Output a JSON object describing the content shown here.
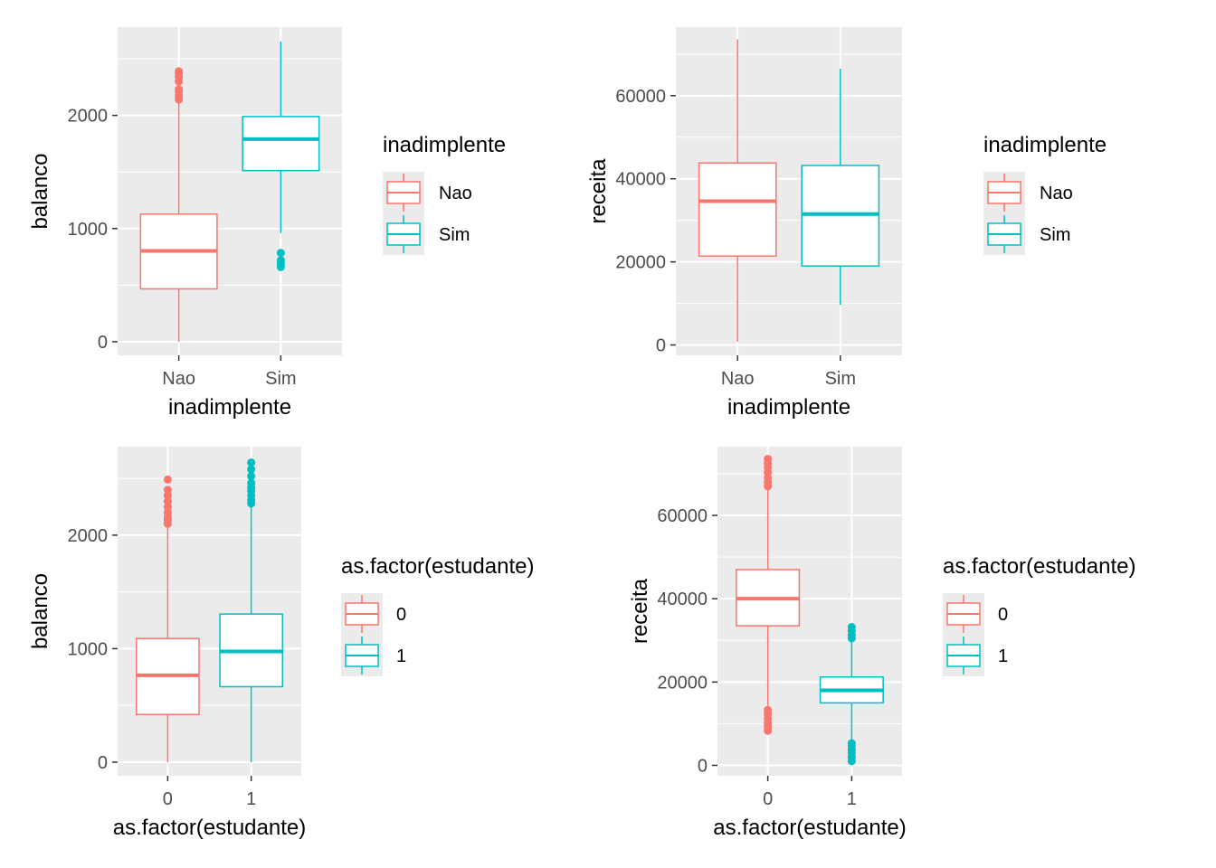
{
  "colors": {
    "level_1": "#F8766D",
    "level_2": "#00BFC4",
    "panel_bg": "#EBEBEB",
    "grid": "#FFFFFF"
  },
  "chart_data": [
    {
      "type": "boxplot",
      "xlabel": "inadimplente",
      "ylabel": "balanco",
      "categories": [
        "Nao",
        "Sim"
      ],
      "ylim": [
        -120,
        2780
      ],
      "yticks": [
        0,
        1000,
        2000
      ],
      "ytick_labels": [
        "0",
        "1000",
        "2000"
      ],
      "legend": {
        "title": "inadimplente",
        "entries": [
          "Nao",
          "Sim"
        ],
        "placement": "right"
      },
      "boxes": [
        {
          "category": "Nao",
          "min": 0,
          "q1": 467,
          "median": 803,
          "q3": 1128,
          "max": 2120,
          "outliers": [
            2140,
            2170,
            2210,
            2230,
            2300,
            2340,
            2370,
            2390
          ]
        },
        {
          "category": "Sim",
          "min": 960,
          "q1": 1512,
          "median": 1790,
          "q3": 1990,
          "max": 2654,
          "outliers": [
            660,
            690,
            720,
            785
          ]
        }
      ]
    },
    {
      "type": "boxplot",
      "xlabel": "inadimplente",
      "ylabel": "receita",
      "categories": [
        "Nao",
        "Sim"
      ],
      "ylim": [
        -2500,
        76500
      ],
      "yticks": [
        0,
        20000,
        40000,
        60000
      ],
      "ytick_labels": [
        "0",
        "20000",
        "40000",
        "60000"
      ],
      "legend": {
        "title": "inadimplente",
        "entries": [
          "Nao",
          "Sim"
        ],
        "placement": "right"
      },
      "boxes": [
        {
          "category": "Nao",
          "min": 772,
          "q1": 21400,
          "median": 34600,
          "q3": 43800,
          "max": 73554,
          "outliers": []
        },
        {
          "category": "Sim",
          "min": 9660,
          "q1": 19000,
          "median": 31500,
          "q3": 43200,
          "max": 66466,
          "outliers": []
        }
      ]
    },
    {
      "type": "boxplot",
      "xlabel": "as.factor(estudante)",
      "ylabel": "balanco",
      "categories": [
        "0",
        "1"
      ],
      "ylim": [
        -120,
        2780
      ],
      "yticks": [
        0,
        1000,
        2000
      ],
      "ytick_labels": [
        "0",
        "1000",
        "2000"
      ],
      "legend": {
        "title": "as.factor(estudante)",
        "entries": [
          "0",
          "1"
        ],
        "placement": "right"
      },
      "boxes": [
        {
          "category": "0",
          "min": 0,
          "q1": 420,
          "median": 765,
          "q3": 1090,
          "max": 2090,
          "outliers": [
            2100,
            2130,
            2160,
            2200,
            2250,
            2300,
            2350,
            2400,
            2490
          ]
        },
        {
          "category": "1",
          "min": 0,
          "q1": 665,
          "median": 975,
          "q3": 1305,
          "max": 2260,
          "outliers": [
            2280,
            2310,
            2350,
            2390,
            2420,
            2460,
            2520,
            2580,
            2640
          ]
        }
      ]
    },
    {
      "type": "boxplot",
      "xlabel": "as.factor(estudante)",
      "ylabel": "receita",
      "categories": [
        "0",
        "1"
      ],
      "ylim": [
        -2500,
        76500
      ],
      "yticks": [
        0,
        20000,
        40000,
        60000
      ],
      "ytick_labels": [
        "0",
        "20000",
        "40000",
        "60000"
      ],
      "legend": {
        "title": "as.factor(estudante)",
        "entries": [
          "0",
          "1"
        ],
        "placement": "right"
      },
      "boxes": [
        {
          "category": "0",
          "min": 13800,
          "q1": 33500,
          "median": 40000,
          "q3": 47000,
          "max": 66500,
          "outliers": [
            8300,
            9200,
            10200,
            11200,
            12300,
            13300,
            67000,
            68000,
            69000,
            70300,
            71500,
            72500,
            73554
          ]
        },
        {
          "category": "1",
          "min": 5800,
          "q1": 15000,
          "median": 18000,
          "q3": 21200,
          "max": 30200,
          "outliers": [
            1000,
            1900,
            2900,
            3800,
            4700,
            5300,
            30500,
            31300,
            32300,
            33200
          ]
        }
      ]
    }
  ]
}
